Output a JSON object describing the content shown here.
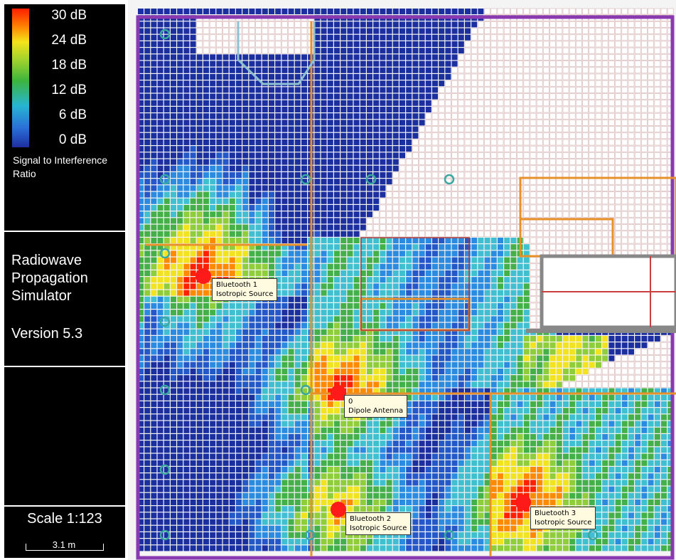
{
  "legend": {
    "levels": [
      "30 dB",
      "24 dB",
      "18 dB",
      "12 dB",
      "6 dB",
      "0 dB"
    ],
    "metric": "Signal to Interference Ratio"
  },
  "app": {
    "title": "Radiowave Propagation Simulator",
    "version": "Version 5.3"
  },
  "scale": {
    "ratio": "Scale 1:123",
    "bar_length": "3.1 m"
  },
  "sources": [
    {
      "name": "Bluetooth 1",
      "type": "Isotropic Source"
    },
    {
      "name": "0",
      "type": "Dipole Antenna"
    },
    {
      "name": "Bluetooth 2",
      "type": "Isotropic Source"
    },
    {
      "name": "Bluetooth 3",
      "type": "Isotropic Source"
    }
  ],
  "colors": {
    "heat": [
      "#1c2f9e",
      "#2458c8",
      "#2b8be0",
      "#3fbfd0",
      "#43b04a",
      "#8fce3a",
      "#f2e320",
      "#ff8a00",
      "#ff2000"
    ],
    "wall": "#e8902a",
    "frame": "#8a3ab0"
  }
}
